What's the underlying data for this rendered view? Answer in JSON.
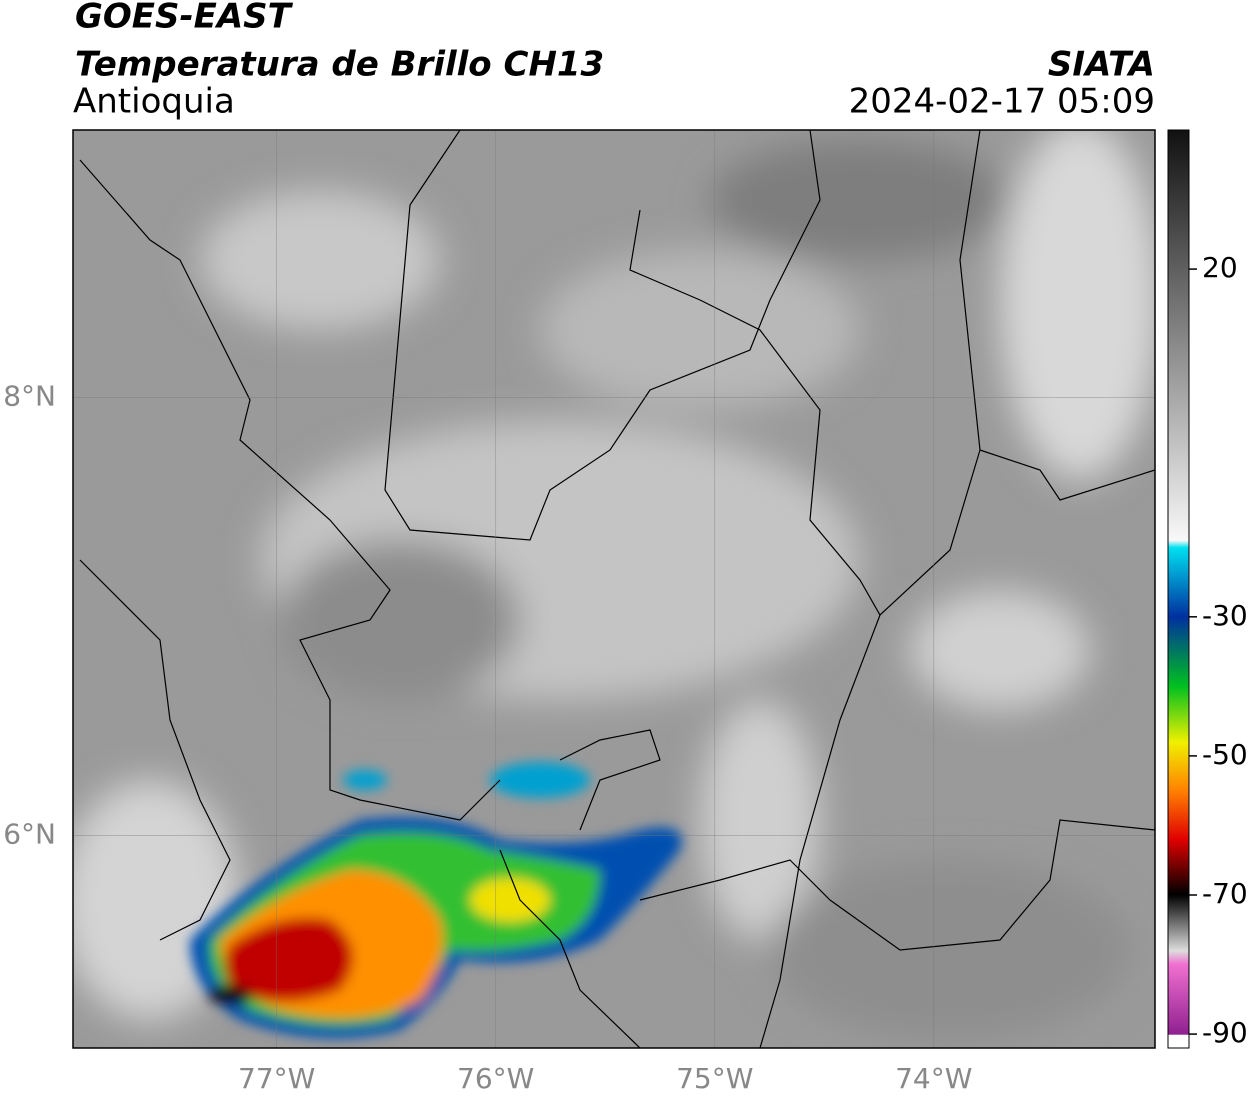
{
  "header": {
    "title": "GOES-EAST",
    "subtitle": "Temperatura de Brillo CH13",
    "region": "Antioquia",
    "source": "SIATA",
    "datetime": "2024-02-17 05:09"
  },
  "map": {
    "xlim": [
      -77.93,
      -72.99
    ],
    "ylim": [
      5.03,
      9.22
    ],
    "xticks": [
      {
        "value": -77,
        "label": "77°W"
      },
      {
        "value": -76,
        "label": "76°W"
      },
      {
        "value": -75,
        "label": "75°W"
      },
      {
        "value": -74,
        "label": "74°W"
      }
    ],
    "yticks": [
      {
        "value": 8,
        "label": "8°N"
      },
      {
        "value": 6,
        "label": "6°N"
      }
    ]
  },
  "colorbar": {
    "lim": [
      -92,
      40
    ],
    "ticks": [
      20,
      -30,
      -50,
      -70,
      -90
    ]
  }
}
